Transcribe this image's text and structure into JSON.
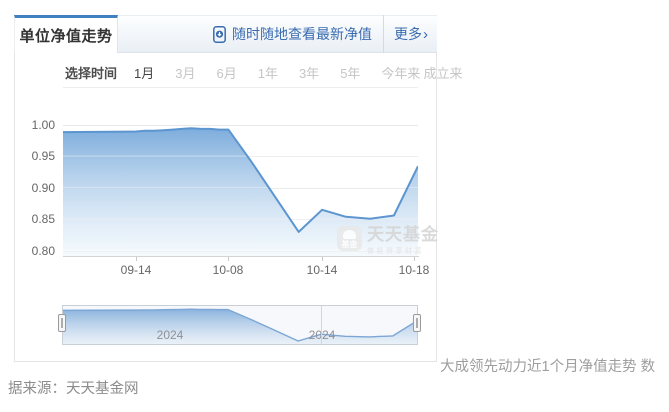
{
  "panel": {
    "tab_title": "单位净值走势",
    "header": {
      "app_link": "随时随地查看最新净值",
      "more_label": "更多",
      "more_arrow": "›"
    },
    "time_filter": {
      "label": "选择时间",
      "options": [
        "1月",
        "3月",
        "6月",
        "1年",
        "3年",
        "5年",
        "今年来",
        "成立来"
      ],
      "selected": "1月"
    },
    "watermark": {
      "logo_text": "基金",
      "title": "天天基金",
      "tagline": "做投资享财富"
    }
  },
  "caption": "大成领先动力近1个月净值走势 数",
  "source_note": "据来源：天天基金网",
  "colors": {
    "accent_blue": "#4080c0",
    "link_blue": "#3a6cb0",
    "line_blue": "#5c95cf",
    "area_top": "#79aadb",
    "area_bottom": "#eef6fc",
    "grid": "#e8e8e8",
    "axis_text": "#666666"
  },
  "chart_data": {
    "type": "area",
    "title": "大成领先动力近1个月净值走势",
    "ylabel": "单位净值",
    "ylim": [
      0.8,
      1.0
    ],
    "ytick_labels": [
      "1.00",
      "0.95",
      "0.90",
      "0.85",
      "0.80"
    ],
    "ytick_values": [
      1.0,
      0.95,
      0.9,
      0.85,
      0.8
    ],
    "xticks": [
      {
        "label": "09-14",
        "f": 0.205
      },
      {
        "label": "10-08",
        "f": 0.466
      },
      {
        "label": "10-14",
        "f": 0.73
      },
      {
        "label": "10-18",
        "f": 0.99
      }
    ],
    "series": [
      {
        "name": "单位净值",
        "points": [
          {
            "date": "09-13",
            "f": 0.0,
            "v": 0.988
          },
          {
            "date": "09-14",
            "f": 0.205,
            "v": 0.989
          },
          {
            "date": "09-18",
            "f": 0.231,
            "v": 0.99
          },
          {
            "date": "09-19",
            "f": 0.257,
            "v": 0.99
          },
          {
            "date": "09-20",
            "f": 0.283,
            "v": 0.991
          },
          {
            "date": "09-23",
            "f": 0.309,
            "v": 0.992
          },
          {
            "date": "09-24",
            "f": 0.335,
            "v": 0.993
          },
          {
            "date": "09-25",
            "f": 0.361,
            "v": 0.994
          },
          {
            "date": "09-26",
            "f": 0.388,
            "v": 0.993
          },
          {
            "date": "09-27",
            "f": 0.414,
            "v": 0.993
          },
          {
            "date": "09-30",
            "f": 0.44,
            "v": 0.992
          },
          {
            "date": "10-08",
            "f": 0.466,
            "v": 0.992
          },
          {
            "date": "10-09",
            "f": 0.532,
            "v": 0.94
          },
          {
            "date": "10-10",
            "f": 0.598,
            "v": 0.885
          },
          {
            "date": "10-11",
            "f": 0.664,
            "v": 0.83
          },
          {
            "date": "10-14",
            "f": 0.73,
            "v": 0.865
          },
          {
            "date": "10-15",
            "f": 0.797,
            "v": 0.854
          },
          {
            "date": "10-16",
            "f": 0.865,
            "v": 0.851
          },
          {
            "date": "10-17",
            "f": 0.932,
            "v": 0.856
          },
          {
            "date": "10-18",
            "f": 1.0,
            "v": 0.934
          }
        ]
      }
    ],
    "navigator": {
      "year_labels": [
        {
          "label": "2024",
          "f": 0.301
        },
        {
          "label": "2024",
          "f": 0.732
        }
      ],
      "divider_f": 0.73,
      "selected_range": [
        0,
        1
      ]
    }
  }
}
